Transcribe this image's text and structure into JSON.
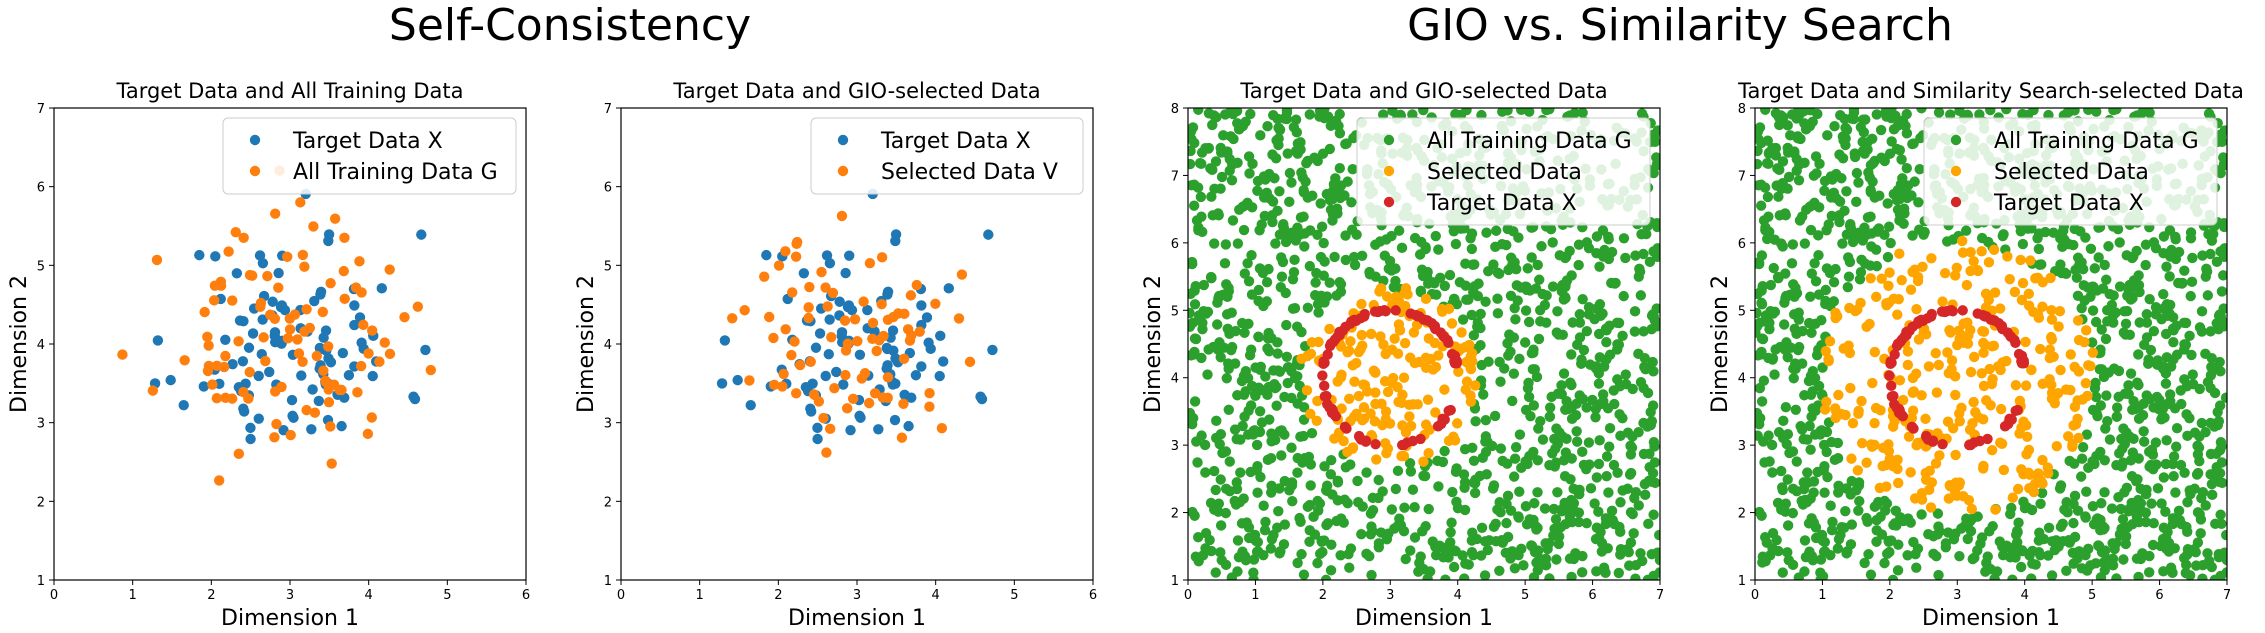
{
  "suptitles": {
    "left": "Self-Consistency",
    "right": "GIO vs. Similarity Search"
  },
  "colors": {
    "blue": "#1f77b4",
    "orange": "#ff7f0e",
    "green": "#2ca02c",
    "gold": "#ffa500",
    "red": "#d62728"
  },
  "chart_data": [
    {
      "type": "scatter",
      "title": "Target Data and All Training Data",
      "xlabel": "Dimension 1",
      "ylabel": "Dimension 2",
      "xlim": [
        0,
        6
      ],
      "ylim": [
        1,
        7
      ],
      "xticks": [
        0,
        1,
        2,
        3,
        4,
        5,
        6
      ],
      "yticks": [
        1,
        2,
        3,
        4,
        5,
        6,
        7
      ],
      "legend_position": "top-right",
      "series": [
        {
          "name": "Target Data X",
          "color": "#1f77b4",
          "draw_order": 0,
          "gen": {
            "kind": "gauss",
            "n": 100,
            "cx": 3.05,
            "cy": 4.0,
            "sx": 0.7,
            "sy": 0.7,
            "seed": 11
          }
        },
        {
          "name": "All Training Data G",
          "color": "#ff7f0e",
          "draw_order": 1,
          "gen": {
            "kind": "gauss",
            "n": 100,
            "cx": 2.9,
            "cy": 4.05,
            "sx": 0.75,
            "sy": 0.7,
            "seed": 23
          }
        }
      ]
    },
    {
      "type": "scatter",
      "title": "Target Data and GIO-selected Data",
      "xlabel": "Dimension 1",
      "ylabel": "Dimension 2",
      "xlim": [
        0,
        6
      ],
      "ylim": [
        1,
        7
      ],
      "xticks": [
        0,
        1,
        2,
        3,
        4,
        5,
        6
      ],
      "yticks": [
        1,
        2,
        3,
        4,
        5,
        6,
        7
      ],
      "legend_position": "top-right",
      "series": [
        {
          "name": "Target Data X",
          "color": "#1f77b4",
          "draw_order": 0,
          "gen": {
            "kind": "gauss",
            "n": 100,
            "cx": 3.05,
            "cy": 4.0,
            "sx": 0.7,
            "sy": 0.7,
            "seed": 11
          }
        },
        {
          "name": "Selected Data V",
          "color": "#ff7f0e",
          "draw_order": 1,
          "gen": {
            "kind": "gauss",
            "n": 80,
            "cx": 2.95,
            "cy": 4.05,
            "sx": 0.65,
            "sy": 0.65,
            "seed": 37
          }
        }
      ]
    },
    {
      "type": "scatter",
      "title": "Target Data and GIO-selected Data",
      "xlabel": "Dimension 1",
      "ylabel": "Dimension 2",
      "xlim": [
        0,
        7
      ],
      "ylim": [
        1,
        8
      ],
      "xticks": [
        0,
        1,
        2,
        3,
        4,
        5,
        6,
        7
      ],
      "yticks": [
        1,
        2,
        3,
        4,
        5,
        6,
        7,
        8
      ],
      "legend_position": "top-right",
      "series": [
        {
          "name": "All Training Data G",
          "color": "#2ca02c",
          "draw_order": 0,
          "gen": {
            "kind": "uniform_excl",
            "n": 1400,
            "xmin": 0,
            "xmax": 7,
            "ymin": 1,
            "ymax": 8,
            "cx": 3,
            "cy": 4,
            "r": 1.3,
            "seed": 5
          }
        },
        {
          "name": "Selected Data",
          "color": "#ffa500",
          "draw_order": 1,
          "gen": {
            "kind": "disk",
            "n": 170,
            "cx": 3,
            "cy": 4,
            "r": 1.35,
            "seed": 9
          }
        },
        {
          "name": "Target Data X",
          "color": "#d62728",
          "draw_order": 2,
          "gen": {
            "kind": "ring",
            "n": 80,
            "cx": 3,
            "cy": 4,
            "r": 1.0,
            "gap": [
              0.05,
              0.4
            ],
            "seed": 3
          }
        }
      ]
    },
    {
      "type": "scatter",
      "title": "Target Data and Similarity Search-selected Data",
      "xlabel": "Dimension 1",
      "ylabel": "Dimension 2",
      "xlim": [
        0,
        7
      ],
      "ylim": [
        1,
        8
      ],
      "xticks": [
        0,
        1,
        2,
        3,
        4,
        5,
        6,
        7
      ],
      "yticks": [
        1,
        2,
        3,
        4,
        5,
        6,
        7,
        8
      ],
      "legend_position": "top-right",
      "series": [
        {
          "name": "All Training Data G",
          "color": "#2ca02c",
          "draw_order": 0,
          "gen": {
            "kind": "uniform_excl",
            "n": 1400,
            "xmin": 0,
            "xmax": 7,
            "ymin": 1,
            "ymax": 8,
            "cx": 3,
            "cy": 4,
            "r": 2.0,
            "seed": 5
          }
        },
        {
          "name": "Selected Data",
          "color": "#ffa500",
          "draw_order": 1,
          "gen": {
            "kind": "annulus",
            "n": 320,
            "cx": 3,
            "cy": 4,
            "r0": 0.0,
            "r1": 2.05,
            "seed": 17
          }
        },
        {
          "name": "Target Data X",
          "color": "#d62728",
          "draw_order": 2,
          "gen": {
            "kind": "ring",
            "n": 80,
            "cx": 3,
            "cy": 4,
            "r": 1.0,
            "gap": [
              0.05,
              0.4
            ],
            "seed": 3
          }
        }
      ]
    }
  ]
}
